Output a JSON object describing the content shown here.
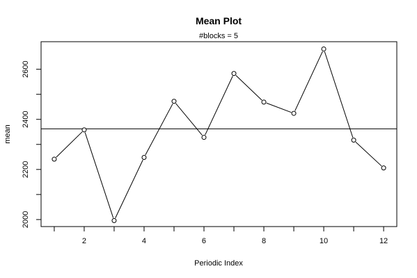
{
  "chart_data": {
    "type": "line",
    "title": "Mean Plot",
    "subtitle": "#blocks =  5",
    "xlabel": "Periodic Index",
    "ylabel": "mean",
    "x": [
      1,
      2,
      3,
      4,
      5,
      6,
      7,
      8,
      9,
      10,
      11,
      12
    ],
    "series": [
      {
        "values": [
          2241,
          2358,
          1996,
          2248,
          2472,
          2328,
          2583,
          2469,
          2424,
          2681,
          2317,
          2206
        ]
      }
    ],
    "overall_mean": 2362,
    "xlim": [
      0.56,
      12.44
    ],
    "ylim": [
      1972,
      2710
    ],
    "xticks": [
      2,
      4,
      6,
      8,
      10,
      12
    ],
    "yticks": [
      2000,
      2200,
      2400,
      2600
    ],
    "grid": false
  }
}
